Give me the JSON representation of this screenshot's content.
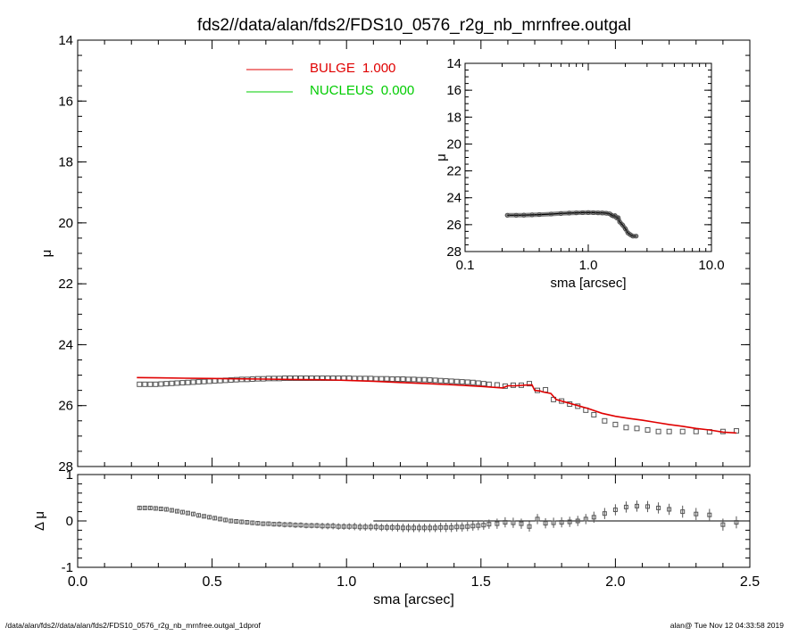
{
  "title": "fds2//data/alan/fds2/FDS10_0576_r2g_nb_mrnfree.outgal",
  "footer": {
    "left": "/data/alan/fds2//data/alan/fds2/FDS10_0576_r2g_nb_mrnfree.outgal_1dprof",
    "right": "alan@  Tue Nov 12 04:33:58 2019"
  },
  "colors": {
    "bulge": "#e00000",
    "nucleus": "#00cc00",
    "data": "#555555",
    "axes": "#000000"
  },
  "chart_data": [
    {
      "id": "main",
      "type": "scatter",
      "xlabel": "",
      "ylabel": "μ",
      "xlim": [
        0,
        2.5
      ],
      "ylim": [
        28,
        14
      ],
      "y_inverted": true,
      "xticks": [
        "0.0",
        "0.5",
        "1.0",
        "1.5",
        "2.0",
        "2.5"
      ],
      "yticks": [
        "14",
        "16",
        "18",
        "20",
        "22",
        "24",
        "26",
        "28"
      ],
      "legend": {
        "placement": "top-center",
        "entries": [
          {
            "name": "BULGE",
            "value": "1.000",
            "color": "#e00000"
          },
          {
            "name": "NUCLEUS",
            "value": "0.000",
            "color": "#00cc00"
          }
        ]
      },
      "series": [
        {
          "name": "data",
          "kind": "points",
          "x": [
            0.23,
            0.25,
            0.27,
            0.29,
            0.31,
            0.33,
            0.35,
            0.37,
            0.39,
            0.41,
            0.43,
            0.45,
            0.47,
            0.49,
            0.51,
            0.53,
            0.55,
            0.57,
            0.59,
            0.61,
            0.63,
            0.65,
            0.67,
            0.69,
            0.71,
            0.73,
            0.75,
            0.77,
            0.79,
            0.81,
            0.83,
            0.85,
            0.87,
            0.89,
            0.91,
            0.93,
            0.95,
            0.97,
            0.99,
            1.01,
            1.03,
            1.05,
            1.07,
            1.09,
            1.11,
            1.13,
            1.15,
            1.17,
            1.19,
            1.21,
            1.23,
            1.25,
            1.27,
            1.29,
            1.31,
            1.33,
            1.35,
            1.37,
            1.39,
            1.41,
            1.43,
            1.45,
            1.47,
            1.49,
            1.51,
            1.53,
            1.56,
            1.59,
            1.62,
            1.65,
            1.68,
            1.71,
            1.74,
            1.77,
            1.8,
            1.83,
            1.86,
            1.89,
            1.92,
            1.96,
            2.0,
            2.04,
            2.08,
            2.12,
            2.16,
            2.2,
            2.25,
            2.3,
            2.35,
            2.4,
            2.45
          ],
          "y": [
            25.3,
            25.3,
            25.3,
            25.3,
            25.29,
            25.28,
            25.27,
            25.26,
            25.25,
            25.24,
            25.23,
            25.22,
            25.21,
            25.2,
            25.19,
            25.18,
            25.17,
            25.16,
            25.15,
            25.14,
            25.14,
            25.13,
            25.12,
            25.12,
            25.11,
            25.11,
            25.11,
            25.1,
            25.1,
            25.1,
            25.1,
            25.1,
            25.1,
            25.1,
            25.1,
            25.1,
            25.1,
            25.1,
            25.1,
            25.1,
            25.11,
            25.11,
            25.11,
            25.11,
            25.12,
            25.12,
            25.12,
            25.13,
            25.13,
            25.13,
            25.14,
            25.14,
            25.15,
            25.15,
            25.16,
            25.17,
            25.18,
            25.19,
            25.2,
            25.21,
            25.22,
            25.23,
            25.24,
            25.26,
            25.28,
            25.3,
            25.32,
            25.36,
            25.33,
            25.33,
            25.28,
            25.5,
            25.48,
            25.8,
            25.85,
            25.95,
            26.02,
            26.15,
            26.3,
            26.5,
            26.62,
            26.72,
            26.75,
            26.8,
            26.85,
            26.85,
            26.85,
            26.85,
            26.86,
            26.85,
            26.83
          ]
        },
        {
          "name": "bulge",
          "kind": "line",
          "color": "#e00000",
          "x": [
            0.22,
            0.3,
            0.4,
            0.5,
            0.6,
            0.7,
            0.8,
            0.9,
            1.0,
            1.1,
            1.2,
            1.3,
            1.4,
            1.5,
            1.58,
            1.6,
            1.63,
            1.66,
            1.69,
            1.7,
            1.72,
            1.73,
            1.76,
            1.78,
            1.82,
            1.86,
            1.9,
            1.95,
            2.0,
            2.05,
            2.1,
            2.15,
            2.2,
            2.25,
            2.3,
            2.35,
            2.4,
            2.45
          ],
          "y": [
            25.08,
            25.09,
            25.1,
            25.11,
            25.12,
            25.13,
            25.14,
            25.15,
            25.17,
            25.2,
            25.24,
            25.28,
            25.32,
            25.37,
            25.42,
            25.35,
            25.35,
            25.33,
            25.32,
            25.5,
            25.52,
            25.55,
            25.6,
            25.8,
            25.9,
            26.0,
            26.1,
            26.25,
            26.35,
            26.42,
            26.48,
            26.55,
            26.62,
            26.68,
            26.75,
            26.8,
            26.87,
            26.9
          ]
        }
      ]
    },
    {
      "id": "residual",
      "type": "scatter",
      "xlabel": "sma [arcsec]",
      "ylabel": "Δ μ",
      "xlim": [
        0,
        2.5
      ],
      "ylim": [
        -1,
        1
      ],
      "xticks": [
        "0.0",
        "0.5",
        "1.0",
        "1.5",
        "2.0",
        "2.5"
      ],
      "yticks": [
        "-1",
        "0",
        "1"
      ],
      "zero_line_from_x": 1.1,
      "series": [
        {
          "name": "residuals",
          "kind": "points-with-errorbars",
          "x": [
            0.23,
            0.25,
            0.27,
            0.29,
            0.31,
            0.33,
            0.35,
            0.37,
            0.39,
            0.41,
            0.43,
            0.45,
            0.47,
            0.49,
            0.51,
            0.53,
            0.55,
            0.57,
            0.59,
            0.61,
            0.63,
            0.65,
            0.67,
            0.69,
            0.71,
            0.73,
            0.75,
            0.77,
            0.79,
            0.81,
            0.83,
            0.85,
            0.87,
            0.89,
            0.91,
            0.93,
            0.95,
            0.97,
            0.99,
            1.01,
            1.03,
            1.05,
            1.07,
            1.09,
            1.11,
            1.13,
            1.15,
            1.17,
            1.19,
            1.21,
            1.23,
            1.25,
            1.27,
            1.29,
            1.31,
            1.33,
            1.35,
            1.37,
            1.39,
            1.41,
            1.43,
            1.45,
            1.47,
            1.49,
            1.51,
            1.53,
            1.56,
            1.59,
            1.62,
            1.65,
            1.68,
            1.71,
            1.74,
            1.77,
            1.8,
            1.83,
            1.86,
            1.89,
            1.92,
            1.96,
            2.0,
            2.04,
            2.08,
            2.12,
            2.16,
            2.2,
            2.25,
            2.3,
            2.35,
            2.4,
            2.45
          ],
          "y": [
            0.28,
            0.28,
            0.28,
            0.27,
            0.26,
            0.25,
            0.23,
            0.21,
            0.19,
            0.17,
            0.15,
            0.12,
            0.1,
            0.08,
            0.06,
            0.04,
            0.02,
            0.0,
            -0.01,
            -0.02,
            -0.03,
            -0.04,
            -0.05,
            -0.06,
            -0.06,
            -0.07,
            -0.07,
            -0.08,
            -0.08,
            -0.09,
            -0.09,
            -0.1,
            -0.1,
            -0.1,
            -0.11,
            -0.11,
            -0.11,
            -0.12,
            -0.12,
            -0.12,
            -0.12,
            -0.13,
            -0.13,
            -0.13,
            -0.13,
            -0.14,
            -0.14,
            -0.14,
            -0.14,
            -0.15,
            -0.15,
            -0.15,
            -0.15,
            -0.15,
            -0.15,
            -0.15,
            -0.14,
            -0.14,
            -0.14,
            -0.13,
            -0.13,
            -0.12,
            -0.11,
            -0.1,
            -0.09,
            -0.07,
            -0.06,
            -0.03,
            -0.04,
            -0.06,
            -0.12,
            0.04,
            -0.05,
            -0.04,
            -0.03,
            -0.02,
            0.0,
            0.04,
            0.08,
            0.16,
            0.24,
            0.3,
            0.32,
            0.31,
            0.28,
            0.25,
            0.2,
            0.15,
            0.13,
            -0.08,
            -0.03
          ],
          "err": [
            0.03,
            0.03,
            0.03,
            0.03,
            0.03,
            0.03,
            0.03,
            0.03,
            0.03,
            0.03,
            0.03,
            0.03,
            0.04,
            0.04,
            0.04,
            0.04,
            0.04,
            0.04,
            0.05,
            0.05,
            0.05,
            0.05,
            0.05,
            0.05,
            0.05,
            0.05,
            0.06,
            0.06,
            0.06,
            0.06,
            0.06,
            0.06,
            0.06,
            0.06,
            0.07,
            0.07,
            0.07,
            0.07,
            0.07,
            0.07,
            0.08,
            0.08,
            0.08,
            0.08,
            0.08,
            0.08,
            0.08,
            0.08,
            0.09,
            0.09,
            0.09,
            0.09,
            0.09,
            0.09,
            0.09,
            0.09,
            0.1,
            0.1,
            0.1,
            0.1,
            0.1,
            0.1,
            0.1,
            0.1,
            0.1,
            0.1,
            0.11,
            0.11,
            0.11,
            0.11,
            0.11,
            0.11,
            0.11,
            0.11,
            0.11,
            0.11,
            0.11,
            0.11,
            0.12,
            0.12,
            0.12,
            0.12,
            0.12,
            0.12,
            0.12,
            0.12,
            0.13,
            0.13,
            0.13,
            0.13,
            0.13
          ]
        }
      ]
    },
    {
      "id": "inset",
      "type": "line",
      "xlabel": "sma [arcsec]",
      "ylabel": "μ",
      "xscale": "log",
      "xlim": [
        0.1,
        10
      ],
      "ylim": [
        28,
        14
      ],
      "y_inverted": true,
      "xticks": [
        "0.1",
        "1.0",
        "10.0"
      ],
      "yticks": [
        "14",
        "16",
        "18",
        "20",
        "22",
        "24",
        "26",
        "28"
      ],
      "series": [
        {
          "name": "data",
          "kind": "points-with-line",
          "x": [
            0.22,
            0.26,
            0.3,
            0.35,
            0.4,
            0.5,
            0.6,
            0.7,
            0.8,
            0.9,
            1.0,
            1.1,
            1.2,
            1.3,
            1.4,
            1.5,
            1.55,
            1.6,
            1.65,
            1.7,
            1.75,
            1.8,
            1.9,
            2.0,
            2.1,
            2.2,
            2.3,
            2.45
          ],
          "y": [
            25.3,
            25.3,
            25.29,
            25.27,
            25.25,
            25.21,
            25.17,
            25.14,
            25.12,
            25.11,
            25.1,
            25.11,
            25.12,
            25.13,
            25.15,
            25.2,
            25.3,
            25.36,
            25.33,
            25.5,
            25.48,
            25.8,
            26.02,
            26.3,
            26.62,
            26.75,
            26.85,
            26.85
          ]
        }
      ]
    }
  ]
}
